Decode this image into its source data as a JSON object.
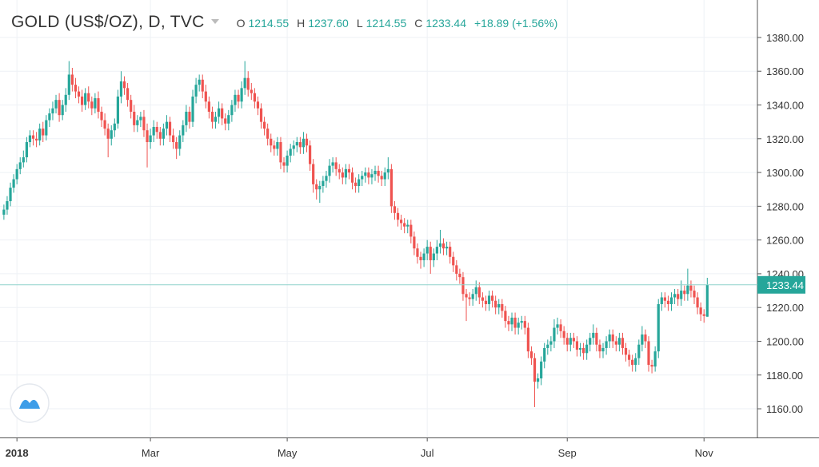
{
  "header": {
    "title": "GOLD (US$/OZ), D, TVC",
    "fields": [
      {
        "key": "O",
        "value": "1214.55"
      },
      {
        "key": "H",
        "value": "1237.60"
      },
      {
        "key": "L",
        "value": "1214.55"
      },
      {
        "key": "C",
        "value": "1233.44"
      }
    ],
    "change": "+18.89 (+1.56%)"
  },
  "chart_data": {
    "type": "candlestick",
    "up_color": "#26a69a",
    "down_color": "#ef5350",
    "grid": true,
    "ylim": [
      1143,
      1402.2
    ],
    "xlim": [
      -1.2,
      231.4
    ],
    "yticks": [
      {
        "value": 1160,
        "label": "1160.00"
      },
      {
        "value": 1180,
        "label": "1180.00"
      },
      {
        "value": 1200,
        "label": "1200.00"
      },
      {
        "value": 1220,
        "label": "1220.00"
      },
      {
        "value": 1240,
        "label": "1240.00"
      },
      {
        "value": 1260,
        "label": "1260.00"
      },
      {
        "value": 1280,
        "label": "1280.00"
      },
      {
        "value": 1300,
        "label": "1300.00"
      },
      {
        "value": 1320,
        "label": "1320.00"
      },
      {
        "value": 1340,
        "label": "1340.00"
      },
      {
        "value": 1360,
        "label": "1360.00"
      },
      {
        "value": 1380,
        "label": "1380.00"
      }
    ],
    "xticks": [
      {
        "value": 4,
        "label": "2018"
      },
      {
        "value": 45,
        "label": "Mar"
      },
      {
        "value": 87,
        "label": "May"
      },
      {
        "value": 130,
        "label": "Jul"
      },
      {
        "value": 173,
        "label": "Sep"
      },
      {
        "value": 215,
        "label": "Nov"
      }
    ],
    "last_price": {
      "value": 1233.44,
      "label": "1233.44"
    },
    "open": [
      1275,
      1278,
      1283,
      1291,
      1296,
      1302,
      1306,
      1309,
      1318,
      1322,
      1320,
      1319,
      1326,
      1322,
      1331,
      1335,
      1338,
      1343,
      1334,
      1340,
      1346,
      1358,
      1352,
      1348,
      1345,
      1340,
      1347,
      1342,
      1338,
      1344,
      1336,
      1331,
      1326,
      1320,
      1325,
      1329,
      1345,
      1354,
      1350,
      1343,
      1336,
      1328,
      1331,
      1333,
      1325,
      1318,
      1322,
      1327,
      1324,
      1320,
      1326,
      1330,
      1322,
      1318,
      1314,
      1322,
      1328,
      1336,
      1330,
      1345,
      1352,
      1355,
      1348,
      1342,
      1336,
      1330,
      1333,
      1338,
      1332,
      1329,
      1334,
      1340,
      1346,
      1342,
      1350,
      1356,
      1349,
      1347,
      1342,
      1338,
      1330,
      1326,
      1320,
      1316,
      1314,
      1318,
      1306,
      1304,
      1310,
      1314,
      1316,
      1318,
      1315,
      1320,
      1316,
      1305,
      1293,
      1290,
      1292,
      1295,
      1298,
      1304,
      1306,
      1302,
      1300,
      1297,
      1302,
      1300,
      1294,
      1292,
      1296,
      1298,
      1300,
      1297,
      1299,
      1301,
      1298,
      1296,
      1300,
      1302,
      1280,
      1276,
      1272,
      1270,
      1268,
      1269,
      1262,
      1255,
      1250,
      1248,
      1252,
      1256,
      1248,
      1252,
      1256,
      1258,
      1255,
      1256,
      1250,
      1245,
      1240,
      1238,
      1228,
      1226,
      1225,
      1228,
      1232,
      1226,
      1224,
      1222,
      1227,
      1224,
      1220,
      1222,
      1218,
      1212,
      1210,
      1214,
      1208,
      1211,
      1212,
      1208,
      1194,
      1190,
      1176,
      1178,
      1188,
      1196,
      1198,
      1200,
      1208,
      1210,
      1206,
      1202,
      1198,
      1202,
      1200,
      1195,
      1196,
      1193,
      1198,
      1202,
      1205,
      1198,
      1194,
      1196,
      1200,
      1204,
      1200,
      1198,
      1202,
      1196,
      1192,
      1189,
      1186,
      1190,
      1198,
      1204,
      1200,
      1186,
      1185,
      1194,
      1222,
      1226,
      1224,
      1222,
      1226,
      1228,
      1225,
      1230,
      1228,
      1233,
      1230,
      1226,
      1220,
      1216,
      1214.55
    ],
    "high": [
      1281,
      1286,
      1294,
      1299,
      1305,
      1309,
      1313,
      1321,
      1325,
      1325,
      1324,
      1329,
      1330,
      1334,
      1338,
      1342,
      1346,
      1347,
      1343,
      1350,
      1366,
      1362,
      1356,
      1351,
      1349,
      1350,
      1351,
      1345,
      1347,
      1348,
      1339,
      1335,
      1329,
      1328,
      1332,
      1349,
      1360,
      1357,
      1353,
      1346,
      1340,
      1334,
      1336,
      1337,
      1329,
      1326,
      1331,
      1330,
      1327,
      1329,
      1334,
      1333,
      1326,
      1321,
      1325,
      1331,
      1340,
      1339,
      1349,
      1356,
      1358,
      1358,
      1352,
      1345,
      1339,
      1336,
      1342,
      1341,
      1335,
      1337,
      1343,
      1349,
      1349,
      1354,
      1366,
      1360,
      1353,
      1350,
      1345,
      1341,
      1333,
      1329,
      1323,
      1319,
      1321,
      1321,
      1309,
      1313,
      1317,
      1319,
      1321,
      1321,
      1324,
      1323,
      1319,
      1308,
      1296,
      1295,
      1298,
      1301,
      1308,
      1309,
      1309,
      1305,
      1303,
      1305,
      1305,
      1303,
      1297,
      1299,
      1301,
      1303,
      1303,
      1302,
      1304,
      1304,
      1301,
      1303,
      1309,
      1305,
      1283,
      1279,
      1275,
      1273,
      1272,
      1272,
      1265,
      1258,
      1253,
      1255,
      1260,
      1259,
      1255,
      1260,
      1266,
      1261,
      1259,
      1259,
      1253,
      1248,
      1243,
      1241,
      1231,
      1229,
      1231,
      1236,
      1235,
      1229,
      1227,
      1230,
      1230,
      1227,
      1225,
      1225,
      1221,
      1215,
      1217,
      1217,
      1214,
      1215,
      1215,
      1211,
      1197,
      1193,
      1181,
      1191,
      1199,
      1201,
      1203,
      1213,
      1214,
      1213,
      1209,
      1205,
      1205,
      1205,
      1203,
      1199,
      1199,
      1201,
      1205,
      1210,
      1208,
      1201,
      1199,
      1203,
      1207,
      1207,
      1203,
      1205,
      1205,
      1199,
      1195,
      1192,
      1193,
      1201,
      1209,
      1207,
      1203,
      1189,
      1197,
      1225,
      1229,
      1229,
      1227,
      1229,
      1231,
      1231,
      1236,
      1233,
      1243,
      1236,
      1233,
      1229,
      1223,
      1219,
      1237.6
    ],
    "low": [
      1272,
      1275,
      1280,
      1288,
      1293,
      1299,
      1303,
      1306,
      1315,
      1316,
      1315,
      1316,
      1318,
      1319,
      1327,
      1331,
      1335,
      1330,
      1331,
      1336,
      1343,
      1348,
      1344,
      1341,
      1336,
      1337,
      1338,
      1334,
      1335,
      1332,
      1327,
      1322,
      1309,
      1316,
      1321,
      1326,
      1341,
      1346,
      1339,
      1332,
      1324,
      1324,
      1327,
      1321,
      1303,
      1314,
      1318,
      1320,
      1316,
      1316,
      1322,
      1318,
      1314,
      1308,
      1310,
      1318,
      1324,
      1326,
      1327,
      1341,
      1348,
      1344,
      1338,
      1332,
      1326,
      1326,
      1329,
      1328,
      1325,
      1325,
      1330,
      1336,
      1338,
      1338,
      1346,
      1345,
      1343,
      1338,
      1334,
      1326,
      1322,
      1316,
      1312,
      1310,
      1310,
      1302,
      1300,
      1300,
      1306,
      1310,
      1312,
      1311,
      1311,
      1312,
      1301,
      1288,
      1284,
      1282,
      1288,
      1291,
      1294,
      1300,
      1298,
      1296,
      1293,
      1293,
      1296,
      1290,
      1288,
      1288,
      1292,
      1294,
      1293,
      1293,
      1295,
      1294,
      1292,
      1292,
      1296,
      1276,
      1272,
      1268,
      1266,
      1264,
      1264,
      1258,
      1251,
      1246,
      1243,
      1244,
      1248,
      1240,
      1244,
      1248,
      1252,
      1251,
      1251,
      1246,
      1241,
      1236,
      1234,
      1224,
      1212,
      1221,
      1221,
      1224,
      1222,
      1220,
      1218,
      1218,
      1220,
      1216,
      1216,
      1214,
      1208,
      1206,
      1206,
      1204,
      1204,
      1207,
      1204,
      1190,
      1186,
      1161,
      1172,
      1174,
      1184,
      1192,
      1194,
      1196,
      1204,
      1202,
      1198,
      1194,
      1194,
      1196,
      1191,
      1191,
      1189,
      1189,
      1194,
      1198,
      1194,
      1190,
      1190,
      1192,
      1196,
      1196,
      1194,
      1194,
      1192,
      1188,
      1185,
      1182,
      1182,
      1186,
      1194,
      1196,
      1182,
      1181,
      1182,
      1190,
      1218,
      1220,
      1218,
      1218,
      1222,
      1221,
      1221,
      1224,
      1224,
      1226,
      1222,
      1216,
      1212,
      1211,
      1214.55
    ],
    "close": [
      1278,
      1283,
      1291,
      1296,
      1302,
      1306,
      1309,
      1318,
      1322,
      1320,
      1319,
      1326,
      1322,
      1331,
      1335,
      1338,
      1343,
      1334,
      1340,
      1346,
      1358,
      1352,
      1348,
      1345,
      1340,
      1347,
      1342,
      1338,
      1344,
      1336,
      1331,
      1326,
      1320,
      1325,
      1329,
      1345,
      1354,
      1350,
      1343,
      1336,
      1328,
      1331,
      1333,
      1325,
      1318,
      1322,
      1327,
      1324,
      1320,
      1326,
      1330,
      1322,
      1318,
      1314,
      1322,
      1328,
      1336,
      1330,
      1345,
      1352,
      1355,
      1348,
      1342,
      1336,
      1330,
      1333,
      1338,
      1332,
      1329,
      1334,
      1340,
      1346,
      1342,
      1350,
      1356,
      1349,
      1347,
      1342,
      1338,
      1330,
      1326,
      1320,
      1316,
      1314,
      1318,
      1306,
      1304,
      1310,
      1314,
      1316,
      1318,
      1315,
      1320,
      1316,
      1305,
      1293,
      1290,
      1292,
      1295,
      1298,
      1304,
      1306,
      1302,
      1300,
      1297,
      1302,
      1300,
      1294,
      1292,
      1296,
      1298,
      1300,
      1297,
      1299,
      1301,
      1298,
      1296,
      1300,
      1302,
      1280,
      1276,
      1272,
      1270,
      1268,
      1269,
      1262,
      1255,
      1250,
      1248,
      1252,
      1256,
      1248,
      1252,
      1256,
      1258,
      1255,
      1256,
      1250,
      1245,
      1240,
      1238,
      1228,
      1226,
      1225,
      1228,
      1232,
      1226,
      1224,
      1222,
      1227,
      1224,
      1220,
      1222,
      1218,
      1212,
      1210,
      1214,
      1208,
      1211,
      1212,
      1208,
      1194,
      1190,
      1176,
      1178,
      1188,
      1196,
      1198,
      1200,
      1208,
      1210,
      1206,
      1202,
      1198,
      1202,
      1200,
      1195,
      1196,
      1193,
      1198,
      1202,
      1205,
      1198,
      1194,
      1196,
      1200,
      1204,
      1200,
      1198,
      1202,
      1196,
      1192,
      1189,
      1186,
      1190,
      1198,
      1204,
      1200,
      1186,
      1185,
      1194,
      1222,
      1226,
      1224,
      1222,
      1226,
      1228,
      1225,
      1230,
      1228,
      1233,
      1230,
      1226,
      1220,
      1216,
      1215,
      1233.44
    ]
  }
}
